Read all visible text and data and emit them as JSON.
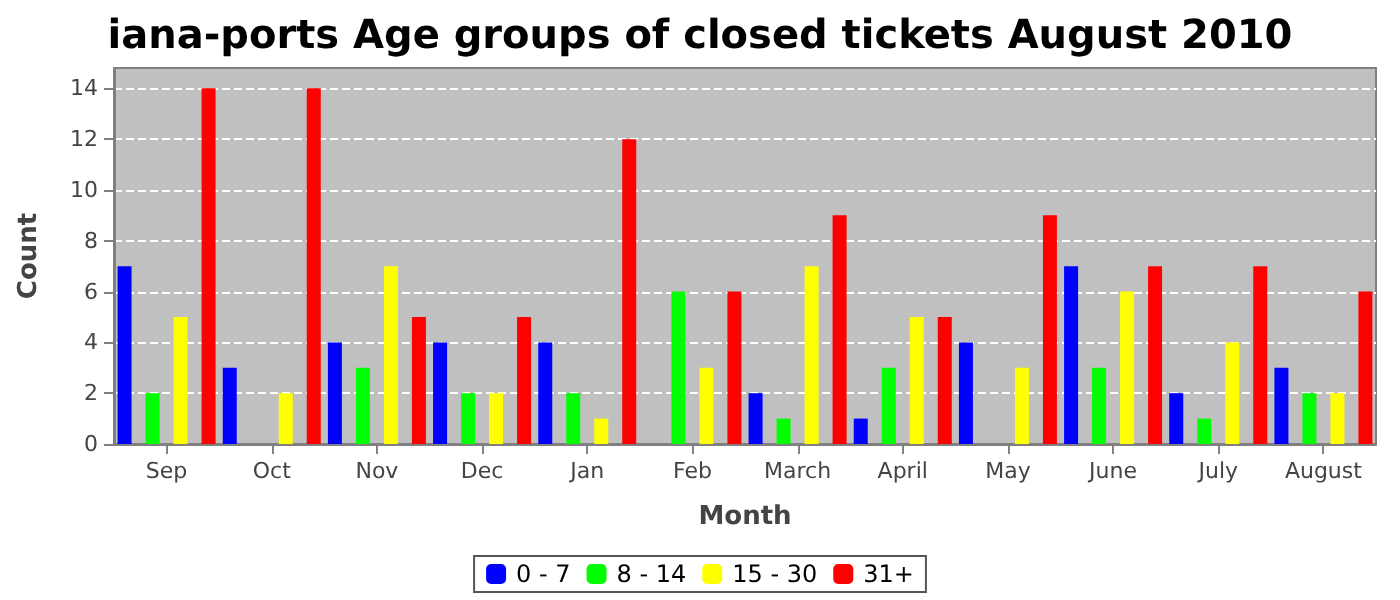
{
  "chart_data": {
    "type": "bar",
    "title": "iana-ports Age groups of closed tickets August 2010",
    "xlabel": "Month",
    "ylabel": "Count",
    "categories": [
      "Sep",
      "Oct",
      "Nov",
      "Dec",
      "Jan",
      "Feb",
      "March",
      "April",
      "May",
      "June",
      "July",
      "August"
    ],
    "series": [
      {
        "name": "0 - 7",
        "color": "#0000ff",
        "values": [
          7,
          3,
          4,
          4,
          4,
          0,
          2,
          1,
          4,
          7,
          2,
          3
        ]
      },
      {
        "name": "8 - 14",
        "color": "#00ff00",
        "values": [
          2,
          0,
          3,
          2,
          2,
          6,
          1,
          3,
          0,
          3,
          1,
          2
        ]
      },
      {
        "name": "15 - 30",
        "color": "#ffff00",
        "values": [
          5,
          2,
          7,
          2,
          1,
          3,
          7,
          5,
          3,
          6,
          4,
          2
        ]
      },
      {
        "name": "31+",
        "color": "#ff0000",
        "values": [
          14,
          14,
          5,
          5,
          12,
          6,
          9,
          5,
          9,
          7,
          7,
          6
        ]
      }
    ],
    "ylim": [
      0,
      14.8
    ],
    "yticks": [
      0,
      2,
      4,
      6,
      8,
      10,
      12,
      14
    ],
    "grid": "y",
    "legend": "bottom"
  }
}
